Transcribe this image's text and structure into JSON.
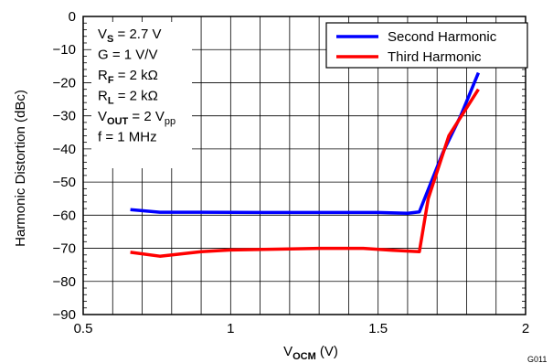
{
  "chart_data": {
    "type": "line",
    "xlabel": {
      "main": "V",
      "sub": "OCM",
      "unit": " (V)"
    },
    "ylabel": "Harmonic Distortion (dBc)",
    "xlim": [
      0.5,
      2
    ],
    "ylim": [
      -90,
      0
    ],
    "x_ticks": [
      0.5,
      1,
      1.5,
      2
    ],
    "x_tick_labels": [
      "0.5",
      "1",
      "1.5",
      "2"
    ],
    "y_ticks": [
      0,
      -10,
      -20,
      -30,
      -40,
      -50,
      -60,
      -70,
      -80,
      -90
    ],
    "y_tick_labels": [
      "0",
      "−10",
      "−20",
      "−30",
      "−40",
      "−50",
      "−60",
      "−70",
      "−80",
      "−90"
    ],
    "x_minor_step": 0.1,
    "grid": true,
    "legend_position": "top-right",
    "series": [
      {
        "name": "Second Harmonic",
        "color": "#0000ff",
        "x": [
          0.66,
          0.76,
          0.9,
          1.1,
          1.3,
          1.5,
          1.6,
          1.64,
          1.72,
          1.78,
          1.84
        ],
        "y": [
          -58.3,
          -59.1,
          -59.1,
          -59.2,
          -59.2,
          -59.2,
          -59.4,
          -59.0,
          -41,
          -30,
          -17
        ]
      },
      {
        "name": "Third Harmonic",
        "color": "#ff0000",
        "x": [
          0.66,
          0.76,
          0.9,
          1.0,
          1.2,
          1.3,
          1.45,
          1.55,
          1.64,
          1.67,
          1.74,
          1.84
        ],
        "y": [
          -71.2,
          -72.4,
          -71.0,
          -70.5,
          -70.2,
          -70.0,
          -70.0,
          -70.6,
          -71.0,
          -55,
          -36,
          -22
        ]
      }
    ],
    "conditions": [
      {
        "main": "V",
        "sub": "S",
        "rest": " = 2.7 V",
        "subtype": "bold"
      },
      {
        "main": "G = 1 V/V",
        "sub": "",
        "rest": "",
        "subtype": "none"
      },
      {
        "main": "R",
        "sub": "F",
        "rest": " = 2 kΩ",
        "subtype": "bold"
      },
      {
        "main": "R",
        "sub": "L",
        "rest": " = 2 kΩ",
        "subtype": "bold"
      },
      {
        "main": "V",
        "sub": "OUT",
        "rest": " = 2 V",
        "subtype": "bold",
        "sub2": "pp"
      },
      {
        "main": "f = 1 MHz",
        "sub": "",
        "rest": "",
        "subtype": "none"
      }
    ],
    "figure_code": "G011"
  }
}
